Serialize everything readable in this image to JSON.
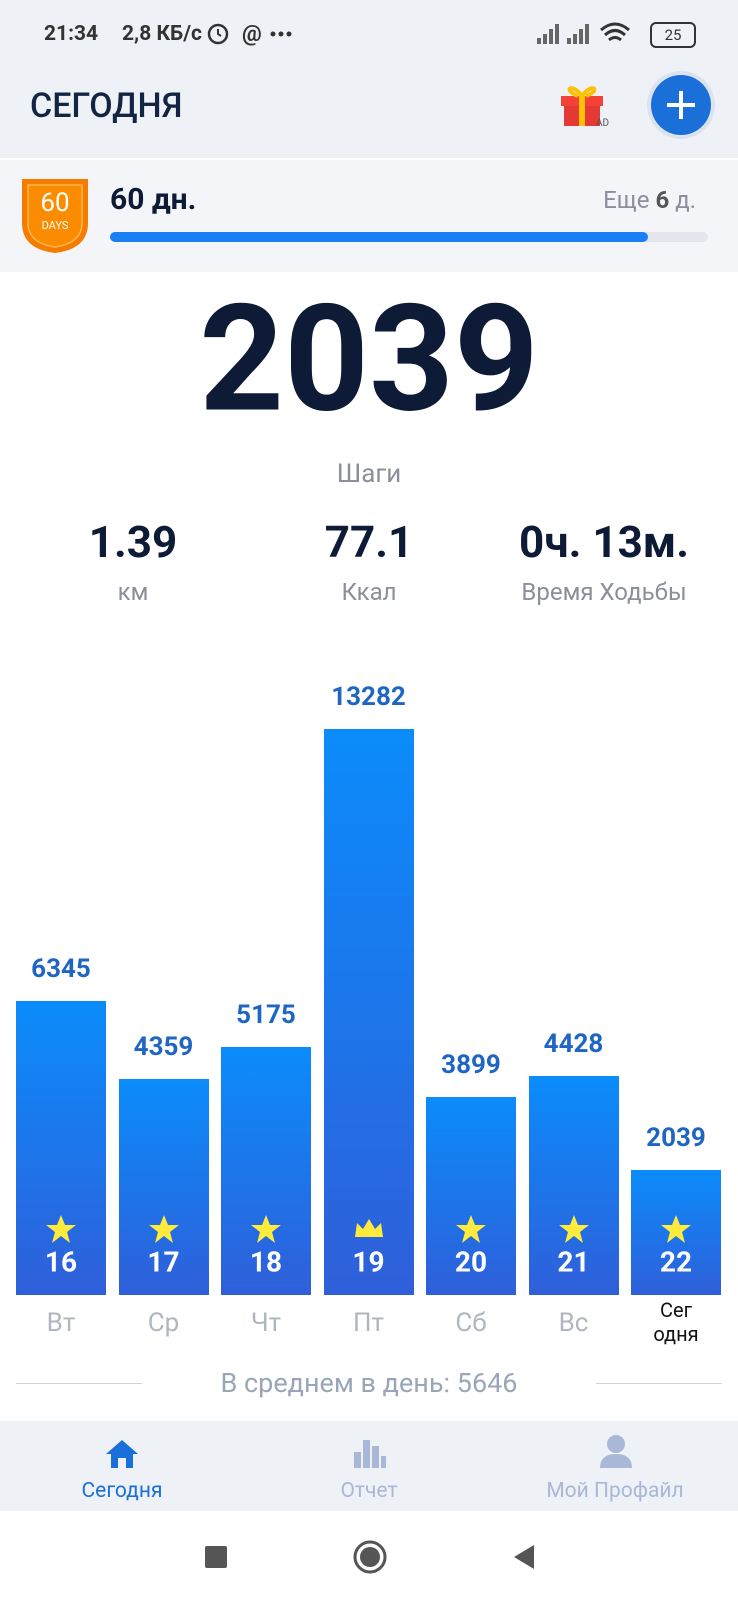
{
  "status_bar": {
    "time": "21:34",
    "network": "2,8 КБ/с",
    "battery": "25"
  },
  "header": {
    "title": "СЕГОДНЯ",
    "gift_label": "AD"
  },
  "streak": {
    "badge_number": "60",
    "badge_label": "DAYS",
    "title": "60 дн.",
    "remaining_prefix": "Еще",
    "remaining_value": "6",
    "remaining_suffix": "д.",
    "progress": 0.9
  },
  "summary": {
    "steps": "2039",
    "steps_label": "Шаги",
    "stats": [
      {
        "value": "1.39",
        "label": "км"
      },
      {
        "value": "77.1",
        "label": "Ккал"
      },
      {
        "value": "0ч. 13м.",
        "label": "Время Ходьбы"
      }
    ]
  },
  "chart_data": {
    "type": "bar",
    "categories": [
      "Вт",
      "Ср",
      "Чт",
      "Пт",
      "Сб",
      "Вс",
      "Сег\nодня"
    ],
    "day_numbers": [
      16,
      17,
      18,
      19,
      20,
      21,
      22
    ],
    "markers": [
      "star",
      "star",
      "star",
      "crown",
      "star",
      "star",
      "star"
    ],
    "values": [
      6345,
      4359,
      5175,
      13282,
      3899,
      4428,
      2039
    ],
    "ylim": [
      -1160,
      13282
    ],
    "color": "#1a7ff5"
  },
  "average": {
    "label": "В среднем в день:",
    "value": 5646
  },
  "bottom_nav": {
    "items": [
      "Сегодня",
      "Отчет",
      "Мой Профайл"
    ]
  }
}
